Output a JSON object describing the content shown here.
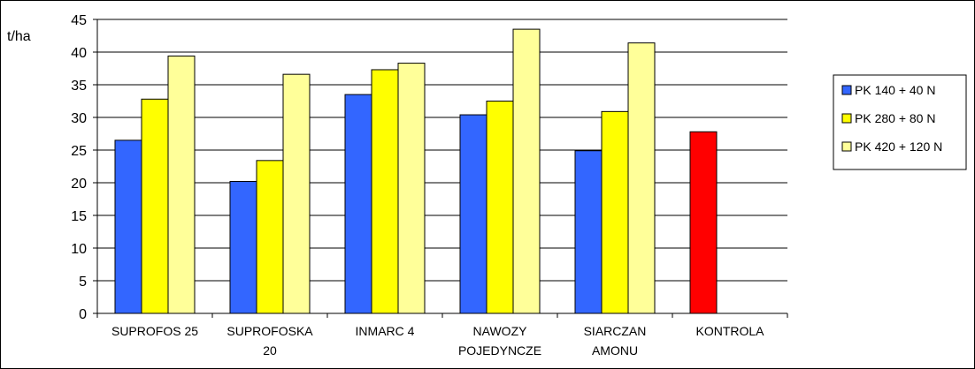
{
  "chart_data": {
    "type": "bar",
    "title": "",
    "xlabel": "",
    "ylabel": "t/ha",
    "ylim": [
      0,
      45
    ],
    "ytick_step": 5,
    "grid": true,
    "legend_position": "right",
    "categories": [
      [
        "SUPROFOS 25"
      ],
      [
        "SUPROFOSKA",
        "20"
      ],
      [
        "INMARC 4"
      ],
      [
        "NAWOZY",
        "POJEDYNCZE"
      ],
      [
        "SIARCZAN",
        "AMONU"
      ],
      [
        "KONTROLA"
      ]
    ],
    "series": [
      {
        "name": "PK 140 + 40 N",
        "color": "#3366ff",
        "values": [
          26.5,
          20.2,
          33.5,
          30.4,
          24.9,
          null
        ]
      },
      {
        "name": "PK 280 + 80 N",
        "color": "#ffff00",
        "values": [
          32.8,
          23.4,
          37.3,
          32.5,
          30.9,
          null
        ]
      },
      {
        "name": "PK 420 + 120 N",
        "color": "#ffff99",
        "values": [
          39.4,
          36.6,
          38.3,
          43.5,
          41.4,
          null
        ]
      }
    ],
    "control": {
      "category_index": 5,
      "value": 27.8,
      "color": "#ff0000"
    }
  }
}
